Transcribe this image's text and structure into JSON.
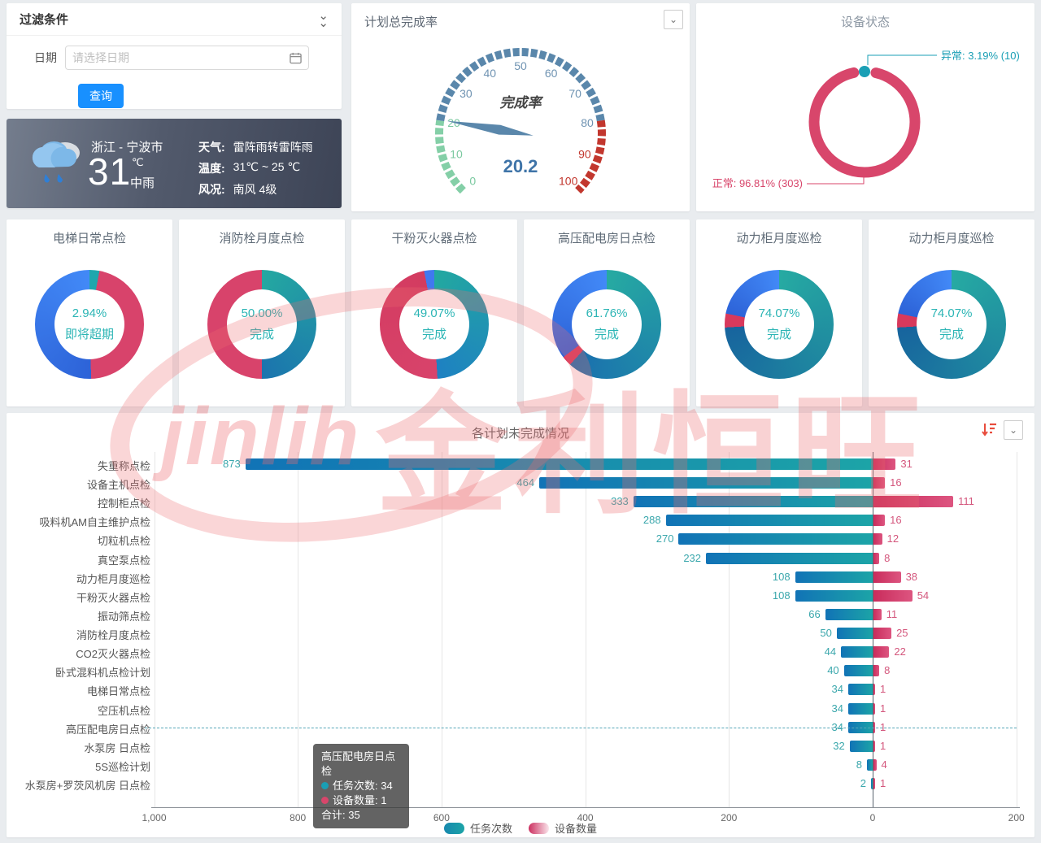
{
  "filter": {
    "title": "过滤条件",
    "date_label": "日期",
    "date_placeholder": "请选择日期",
    "search_button": "查询"
  },
  "weather": {
    "location": "浙江 - 宁波市",
    "temperature_big": "31",
    "temperature_unit": "℃",
    "condition_now": "中雨",
    "rows": [
      {
        "label": "天气:",
        "value": "雷阵雨转雷阵雨"
      },
      {
        "label": "温度:",
        "value": "31℃ ~ 25 ℃"
      },
      {
        "label": "风况:",
        "value": "南风 4级"
      }
    ]
  },
  "watermark": {
    "latin": "jinlih",
    "cjk": "金利恒旺"
  },
  "chart_data": [
    {
      "type": "gauge",
      "title": "计划总完成率",
      "label": "完成率",
      "value": 20.2,
      "min": 0,
      "max": 100,
      "ticks": [
        0,
        10,
        20,
        30,
        40,
        50,
        60,
        70,
        80,
        90,
        100
      ],
      "zones": [
        {
          "from": 0,
          "to": 20,
          "color": "#84cfa7"
        },
        {
          "from": 20,
          "to": 80,
          "color": "#5a87ab"
        },
        {
          "from": 80,
          "to": 100,
          "color": "#c2372e"
        }
      ],
      "tick_colors": {
        "low": "#7bc9a0",
        "mid": "#6f93b2",
        "high": "#c2372e"
      },
      "needle_color": "#5a87ab"
    },
    {
      "type": "pie",
      "title": "设备状态",
      "slices": [
        {
          "name": "正常",
          "pct": 96.81,
          "count": 303,
          "color": "#d8466b",
          "callout": "正常: 96.81% (303)"
        },
        {
          "name": "异常",
          "pct": 3.19,
          "count": 10,
          "color": "#1a9fb5",
          "callout": "异常: 3.19% (10)"
        }
      ]
    },
    {
      "type": "donut-set",
      "items": [
        {
          "title": "电梯日常点检",
          "center_value": "2.94%",
          "center_status": "即将超期",
          "segments": [
            {
              "from": 0,
              "to": 2.94,
              "c1": "#1fa7ad"
            },
            {
              "from": 2.94,
              "to": 49.5,
              "c1": "#d8436b"
            },
            {
              "from": 49.5,
              "to": 100,
              "c1": "#2d63d8",
              "c2": "#4289f7"
            }
          ]
        },
        {
          "title": "消防栓月度点检",
          "center_value": "50.00%",
          "center_status": "完成",
          "segments": [
            {
              "from": 0,
              "to": 50,
              "c1": "#24a8a1",
              "c2": "#1b74ae"
            },
            {
              "from": 50,
              "to": 100,
              "c1": "#d8436b"
            }
          ]
        },
        {
          "title": "干粉灭火器点检",
          "center_value": "49.07%",
          "center_status": "完成",
          "segments": [
            {
              "from": 0,
              "to": 49.07,
              "c1": "#22a8a0",
              "c2": "#1e81c2"
            },
            {
              "from": 49.07,
              "to": 97,
              "c1": "#d8436b",
              "c2": "#d33b60"
            },
            {
              "from": 97,
              "to": 100,
              "c1": "#4079f0"
            }
          ]
        },
        {
          "title": "高压配电房日点检",
          "center_value": "61.76%",
          "center_status": "完成",
          "segments": [
            {
              "from": 0,
              "to": 61.76,
              "c1": "#26aaa2",
              "c2": "#1a6fae"
            },
            {
              "from": 61.76,
              "to": 64.7,
              "c1": "#d8395c"
            },
            {
              "from": 64.7,
              "to": 100,
              "c1": "#2d63d8",
              "c2": "#4289f7"
            }
          ]
        },
        {
          "title": "动力柜月度巡检",
          "center_value": "74.07%",
          "center_status": "完成",
          "segments": [
            {
              "from": 0,
              "to": 74.07,
              "c1": "#26aaa2",
              "c2": "#17649e"
            },
            {
              "from": 74.07,
              "to": 78.2,
              "c1": "#d8395c"
            },
            {
              "from": 78.2,
              "to": 100,
              "c1": "#2d63d8",
              "c2": "#4289f7"
            }
          ]
        },
        {
          "title": "动力柜月度巡检",
          "center_value": "74.07%",
          "center_status": "完成",
          "segments": [
            {
              "from": 0,
              "to": 74.07,
              "c1": "#26aaa2",
              "c2": "#17649e"
            },
            {
              "from": 74.07,
              "to": 78.2,
              "c1": "#d8395c"
            },
            {
              "from": 78.2,
              "to": 100,
              "c1": "#2d63d8",
              "c2": "#4289f7"
            }
          ]
        }
      ]
    },
    {
      "type": "bar",
      "orientation": "horizontal-diverging",
      "title": "各计划未完成情况",
      "series": [
        {
          "name": "任务次数",
          "color_start": "#1173b6",
          "color_end": "#1ca4a7"
        },
        {
          "name": "设备数量",
          "color_start": "#c92c5c",
          "color_end": "#dd5580"
        }
      ],
      "categories": [
        "失重称点检",
        "设备主机点检",
        "控制柜点检",
        "吸料机AM自主维护点检",
        "切粒机点检",
        "真空泵点检",
        "动力柜月度巡检",
        "干粉灭火器点检",
        "振动筛点检",
        "消防栓月度点检",
        "CO2灭火器点检",
        "卧式混料机点检计划",
        "电梯日常点检",
        "空压机点检",
        "高压配电房日点检",
        "水泵房 日点检",
        "5S巡检计划",
        "水泵房+罗茨风机房 日点检"
      ],
      "tasks": [
        873,
        464,
        333,
        288,
        270,
        232,
        108,
        108,
        66,
        50,
        44,
        40,
        34,
        34,
        34,
        32,
        8,
        2
      ],
      "devices": [
        31,
        16,
        111,
        16,
        12,
        8,
        38,
        54,
        11,
        25,
        22,
        8,
        1,
        1,
        1,
        1,
        4,
        1
      ],
      "x_axis_ticks": [
        "1,000",
        "800",
        "600",
        "400",
        "200",
        "0",
        "200"
      ],
      "x_axis_tick_values": [
        1000,
        800,
        600,
        400,
        200,
        0,
        -200
      ],
      "axis_left_max": 1000,
      "axis_right_max": 200,
      "highlighted_index": 14,
      "tooltip": {
        "title": "高压配电房日点检",
        "line1_label": "任务次数:",
        "line1_value": "34",
        "line2_label": "设备数量:",
        "line2_value": "1",
        "total_label": "合计:",
        "total_value": "35"
      }
    }
  ]
}
